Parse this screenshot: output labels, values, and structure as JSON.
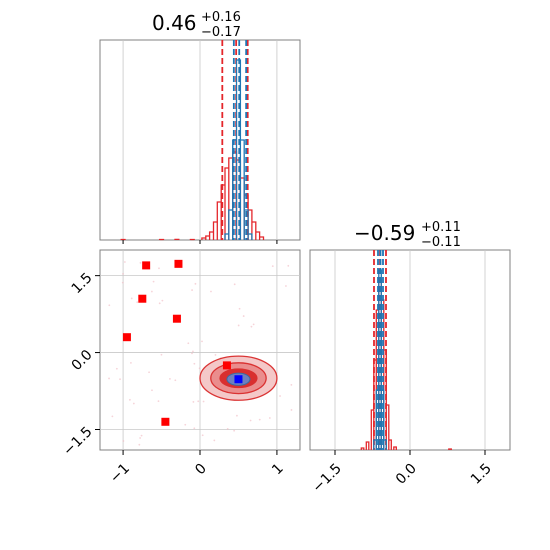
{
  "chart_data": [
    {
      "type": "histogram",
      "panel": "top-left",
      "title": {
        "median": "0.46",
        "plus": "+0.16",
        "minus": "−0.17"
      },
      "xlim": [
        -1.3,
        1.3
      ],
      "gridlines_x": [
        -1,
        0,
        1
      ],
      "series": [
        {
          "color": "#e4262b",
          "bins": [
            [
              -1.0,
              0.5
            ],
            [
              -0.5,
              0.5
            ],
            [
              -0.3,
              0.6
            ],
            [
              -0.1,
              0.5
            ],
            [
              0.05,
              2
            ],
            [
              0.1,
              4
            ],
            [
              0.15,
              8
            ],
            [
              0.2,
              18
            ],
            [
              0.25,
              38
            ],
            [
              0.3,
              55
            ],
            [
              0.35,
              72
            ],
            [
              0.4,
              82
            ],
            [
              0.45,
              88
            ],
            [
              0.5,
              80
            ],
            [
              0.55,
              62
            ],
            [
              0.6,
              45
            ],
            [
              0.65,
              30
            ],
            [
              0.7,
              18
            ],
            [
              0.75,
              8
            ],
            [
              0.8,
              3
            ]
          ],
          "quantile_lines": [
            0.29,
            0.47,
            0.62
          ]
        },
        {
          "color": "#1f77b4",
          "bins": [
            [
              0.35,
              6
            ],
            [
              0.4,
              30
            ],
            [
              0.45,
              100
            ],
            [
              0.5,
              180
            ],
            [
              0.55,
              100
            ],
            [
              0.6,
              30
            ],
            [
              0.65,
              6
            ]
          ],
          "quantile_lines": [
            0.44,
            0.51,
            0.6
          ]
        }
      ]
    },
    {
      "type": "scatter-contour",
      "panel": "bottom-left",
      "xlim": [
        -1.3,
        1.3
      ],
      "ylim": [
        -1.9,
        2.0
      ],
      "xticks": [
        "−1",
        "0",
        "1"
      ],
      "xtick_values": [
        -1,
        0,
        1
      ],
      "yticks": [
        "1.5",
        "0.0",
        "−1.5"
      ],
      "ytick_values": [
        1.5,
        0.0,
        -1.5
      ],
      "red_squares": [
        [
          -0.7,
          1.7
        ],
        [
          -0.28,
          1.73
        ],
        [
          -0.75,
          1.05
        ],
        [
          -0.3,
          0.66
        ],
        [
          -0.95,
          0.3
        ],
        [
          0.35,
          -0.25
        ],
        [
          -0.45,
          -1.35
        ]
      ],
      "blue_square": [
        0.5,
        -0.52
      ],
      "red_contour_center": [
        0.5,
        -0.5
      ],
      "red_contour_radii": [
        [
          0.5,
          0.43
        ],
        [
          0.36,
          0.3
        ],
        [
          0.24,
          0.18
        ]
      ],
      "blue_contour_center": [
        0.5,
        -0.52
      ],
      "blue_contour_radii": [
        [
          0.15,
          0.12
        ]
      ]
    },
    {
      "type": "histogram",
      "panel": "bottom-right",
      "title": {
        "median": "−0.59",
        "plus": "+0.11",
        "minus": "−0.11"
      },
      "xlim": [
        -2.0,
        2.0
      ],
      "xticks": [
        "−1.5",
        "0.0",
        "1.5"
      ],
      "xtick_values": [
        -1.5,
        0.0,
        1.5
      ],
      "series": [
        {
          "color": "#e4262b",
          "bins": [
            [
              -0.95,
              2
            ],
            [
              -0.85,
              8
            ],
            [
              -0.75,
              40
            ],
            [
              -0.7,
              90
            ],
            [
              -0.65,
              140
            ],
            [
              -0.6,
              170
            ],
            [
              -0.55,
              150
            ],
            [
              -0.5,
              100
            ],
            [
              -0.45,
              45
            ],
            [
              -0.4,
              10
            ],
            [
              -0.3,
              3
            ],
            [
              0.8,
              1
            ]
          ],
          "quantile_lines": [
            -0.72,
            -0.6,
            -0.48
          ]
        },
        {
          "color": "#1f77b4",
          "bins": [
            [
              -0.7,
              10
            ],
            [
              -0.65,
              60
            ],
            [
              -0.6,
              180
            ],
            [
              -0.55,
              60
            ],
            [
              -0.5,
              10
            ]
          ],
          "quantile_lines": [
            -0.64,
            -0.59,
            -0.54
          ]
        }
      ]
    }
  ]
}
